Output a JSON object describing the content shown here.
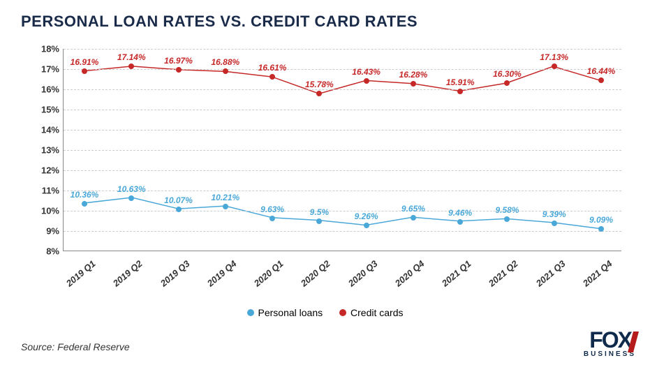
{
  "title": "PERSONAL LOAN RATES VS. CREDIT CARD RATES",
  "title_color": "#1a2b4a",
  "title_fontsize": 22,
  "source": "Source: Federal Reserve",
  "brand": {
    "main": "FOX",
    "sub": "BUSINESS"
  },
  "chart": {
    "type": "line",
    "background_color": "#ffffff",
    "grid_color": "#cccccc",
    "axis_color": "#888888",
    "xlabels": [
      "2019 Q1",
      "2019 Q2",
      "2019 Q3",
      "2019 Q4",
      "2020 Q1",
      "2020 Q2",
      "2020 Q3",
      "2020 Q4",
      "2021 Q1",
      "2021 Q2",
      "2021 Q3",
      "2021 Q4"
    ],
    "ylim": [
      8,
      18
    ],
    "ytick_step": 1,
    "yticks": [
      "8%",
      "9%",
      "10%",
      "11%",
      "12%",
      "13%",
      "14%",
      "15%",
      "16%",
      "17%",
      "18%"
    ],
    "label_fontsize": 13,
    "datalabel_fontsize": 12,
    "marker_size": 8,
    "line_width": 1.5,
    "series": [
      {
        "name": "Personal loans",
        "color": "#4aa8d8",
        "values": [
          10.36,
          10.63,
          10.07,
          10.21,
          9.63,
          9.5,
          9.26,
          9.65,
          9.46,
          9.58,
          9.39,
          9.09
        ],
        "labels": [
          "10.36%",
          "10.63%",
          "10.07%",
          "10.21%",
          "9.63%",
          "9.5%",
          "9.26%",
          "9.65%",
          "9.46%",
          "9.58%",
          "9.39%",
          "9.09%"
        ]
      },
      {
        "name": "Credit cards",
        "color": "#c62828",
        "values": [
          16.91,
          17.14,
          16.97,
          16.88,
          16.61,
          15.78,
          16.43,
          16.28,
          15.91,
          16.3,
          17.13,
          16.44
        ],
        "labels": [
          "16.91%",
          "17.14%",
          "16.97%",
          "16.88%",
          "16.61%",
          "15.78%",
          "16.43%",
          "16.28%",
          "15.91%",
          "16.30%",
          "17.13%",
          "16.44%"
        ]
      }
    ],
    "legend": {
      "items": [
        "Personal loans",
        "Credit cards"
      ]
    }
  }
}
